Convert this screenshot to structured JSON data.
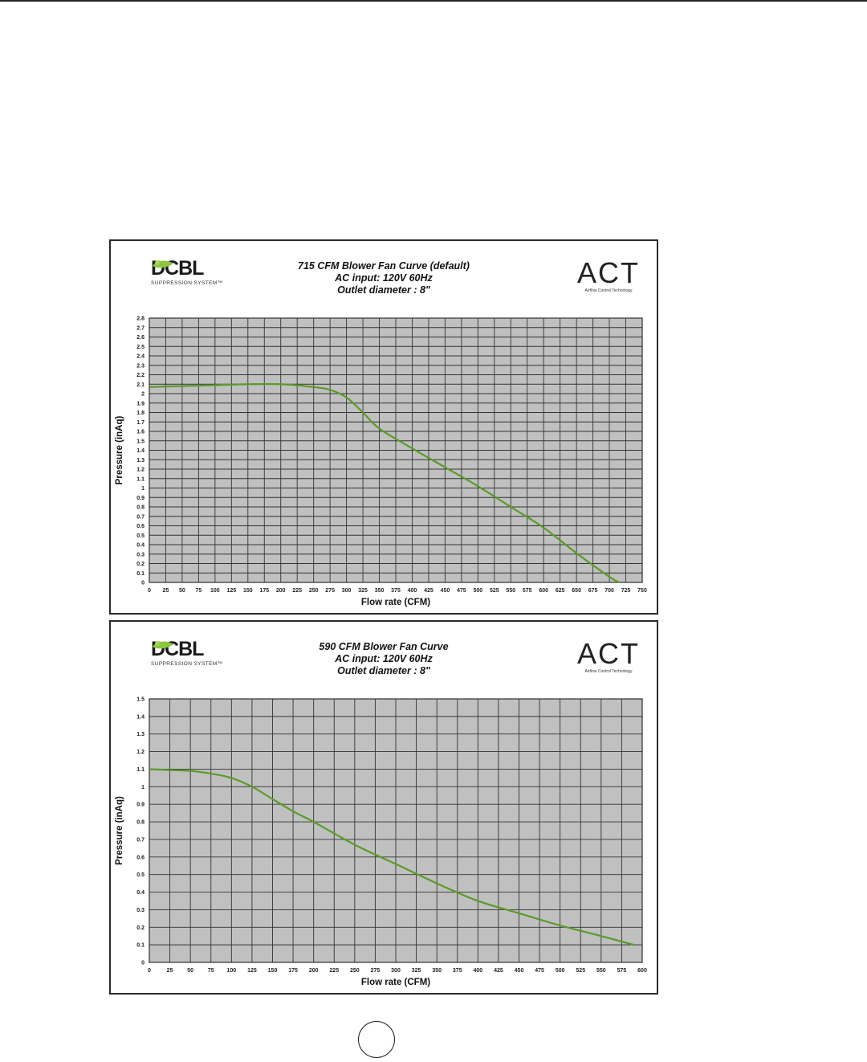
{
  "chart_data": [
    {
      "type": "line",
      "title": [
        "715 CFM Blower Fan Curve (default)",
        "AC input: 120V  60Hz",
        "Outlet diameter : 8\""
      ],
      "xlabel": "Flow rate (CFM)",
      "ylabel": "Pressure (inAq)",
      "xlim": [
        0,
        750
      ],
      "ylim": [
        0,
        2.8
      ],
      "x_ticks": [
        0,
        25,
        50,
        75,
        100,
        125,
        150,
        175,
        200,
        225,
        250,
        275,
        300,
        325,
        350,
        375,
        400,
        425,
        450,
        475,
        500,
        525,
        550,
        575,
        600,
        625,
        650,
        675,
        700,
        725,
        750
      ],
      "x_tick_labels": [
        "0",
        "25",
        "50",
        "75",
        "100",
        "125",
        "150",
        "175",
        "200",
        "225",
        "250",
        "275",
        "300",
        "325",
        "350",
        "375",
        "400",
        "425",
        "450",
        "475",
        "500",
        "525",
        "550",
        "575",
        "600",
        "625",
        "650",
        "675",
        "700",
        "725",
        "750"
      ],
      "y_ticks": [
        0,
        0.1,
        0.2,
        0.3,
        0.4,
        0.5,
        0.6,
        0.7,
        0.8,
        0.9,
        1,
        1.1,
        1.2,
        1.3,
        1.4,
        1.5,
        1.6,
        1.7,
        1.8,
        1.9,
        2,
        2.1,
        2.2,
        2.3,
        2.4,
        2.5,
        2.6,
        2.7,
        2.8
      ],
      "y_tick_labels": [
        "0",
        "0.1",
        "0.2",
        "0.3",
        "0.4",
        "0.5",
        "0.6",
        "0.7",
        "0.8",
        "0.9",
        "1",
        "1.1",
        "1.2",
        "1.3",
        "1.4",
        "1.5",
        "1.6",
        "1.7",
        "1.8",
        "1.9",
        "2",
        "2.1",
        "2.2",
        "2.3",
        "2.4",
        "2.5",
        "2.6",
        "2.7",
        "2.8"
      ],
      "grid": true,
      "series": [
        {
          "x": [
            0,
            50,
            100,
            150,
            200,
            250,
            275,
            300,
            325,
            350,
            400,
            450,
            500,
            550,
            600,
            650,
            700,
            715
          ],
          "y": [
            2.07,
            2.08,
            2.09,
            2.1,
            2.1,
            2.07,
            2.04,
            1.96,
            1.8,
            1.63,
            1.42,
            1.22,
            1.02,
            0.8,
            0.58,
            0.31,
            0.06,
            0.0
          ]
        }
      ]
    },
    {
      "type": "line",
      "title": [
        "590 CFM Blower Fan Curve",
        "AC input: 120V  60Hz",
        "Outlet diameter : 8\""
      ],
      "xlabel": "Flow rate (CFM)",
      "ylabel": "Pressure (inAq)",
      "xlim": [
        0,
        600
      ],
      "ylim": [
        0,
        1.5
      ],
      "x_ticks": [
        0,
        25,
        50,
        75,
        100,
        125,
        150,
        175,
        200,
        225,
        250,
        275,
        300,
        325,
        350,
        375,
        400,
        425,
        450,
        475,
        500,
        525,
        550,
        575,
        600
      ],
      "x_tick_labels": [
        "0",
        "25",
        "50",
        "75",
        "100",
        "125",
        "150",
        "175",
        "200",
        "225",
        "250",
        "275",
        "300",
        "325",
        "350",
        "375",
        "400",
        "425",
        "450",
        "475",
        "500",
        "525",
        "550",
        "575",
        "600"
      ],
      "y_ticks": [
        0,
        0.1,
        0.2,
        0.3,
        0.4,
        0.5,
        0.6,
        0.7,
        0.8,
        0.9,
        1,
        1.1,
        1.2,
        1.3,
        1.4,
        1.5
      ],
      "y_tick_labels": [
        "0",
        "0.1",
        "0.2",
        "0.3",
        "0.4",
        "0.5",
        "0.6",
        "0.7",
        "0.8",
        "0.9",
        "1",
        "1.1",
        "1.2",
        "1.3",
        "1.4",
        "1.5"
      ],
      "grid": true,
      "series": [
        {
          "x": [
            0,
            25,
            50,
            75,
            100,
            125,
            150,
            175,
            200,
            250,
            300,
            350,
            400,
            450,
            500,
            550,
            590
          ],
          "y": [
            1.1,
            1.095,
            1.09,
            1.075,
            1.05,
            1.0,
            0.93,
            0.86,
            0.8,
            0.67,
            0.56,
            0.45,
            0.35,
            0.28,
            0.21,
            0.15,
            0.1
          ]
        }
      ]
    }
  ],
  "logos": {
    "dcbl_text": "DCBL",
    "dcbl_sub": "SUPPRESSION SYSTEM™",
    "act_text": "ACT",
    "act_sub": "Airflow Control Technology"
  },
  "colors": {
    "plot_bg": "#c0c0c0",
    "grid": "#333333",
    "curve": "#5a9a2a",
    "leaf": "#8cc63f"
  }
}
